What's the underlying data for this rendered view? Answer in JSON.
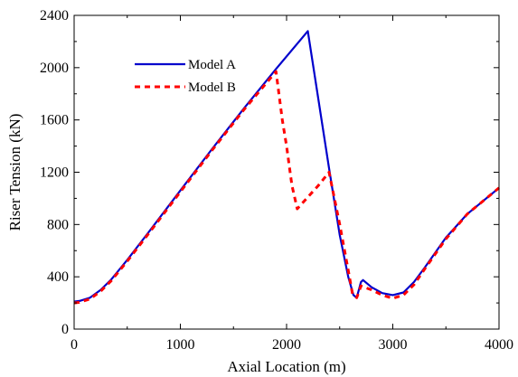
{
  "chart_data": {
    "type": "line",
    "title": "",
    "xlabel": "Axial Location (m)",
    "ylabel": "Riser Tension (kN)",
    "xlim": [
      0,
      4000
    ],
    "ylim": [
      0,
      2400
    ],
    "x_ticks": [
      0,
      1000,
      2000,
      3000,
      4000
    ],
    "y_ticks": [
      0,
      400,
      800,
      1200,
      1600,
      2000,
      2400
    ],
    "x_tick_labels": [
      "0",
      "1000",
      "2000",
      "3000",
      "4000"
    ],
    "y_tick_labels": [
      "0",
      "400",
      "800",
      "1200",
      "1600",
      "2000",
      "2400"
    ],
    "grid": false,
    "legend_position": "top-left",
    "series": [
      {
        "name": "Model A",
        "color": "#0000cc",
        "style": "solid",
        "points": [
          [
            0,
            210
          ],
          [
            50,
            215
          ],
          [
            150,
            240
          ],
          [
            250,
            300
          ],
          [
            350,
            380
          ],
          [
            500,
            530
          ],
          [
            700,
            740
          ],
          [
            1000,
            1060
          ],
          [
            1300,
            1380
          ],
          [
            1600,
            1690
          ],
          [
            1900,
            1990
          ],
          [
            2200,
            2280
          ],
          [
            2400,
            1230
          ],
          [
            2500,
            720
          ],
          [
            2580,
            400
          ],
          [
            2630,
            260
          ],
          [
            2660,
            240
          ],
          [
            2700,
            360
          ],
          [
            2720,
            375
          ],
          [
            2800,
            320
          ],
          [
            2900,
            275
          ],
          [
            3000,
            260
          ],
          [
            3100,
            280
          ],
          [
            3200,
            360
          ],
          [
            3300,
            470
          ],
          [
            3500,
            700
          ],
          [
            3700,
            880
          ],
          [
            4000,
            1080
          ]
        ]
      },
      {
        "name": "Model B",
        "color": "#ff0000",
        "style": "dashed",
        "points": [
          [
            0,
            200
          ],
          [
            50,
            205
          ],
          [
            150,
            230
          ],
          [
            250,
            290
          ],
          [
            350,
            370
          ],
          [
            500,
            520
          ],
          [
            700,
            730
          ],
          [
            1000,
            1050
          ],
          [
            1300,
            1370
          ],
          [
            1600,
            1680
          ],
          [
            1900,
            1970
          ],
          [
            1920,
            1850
          ],
          [
            1960,
            1600
          ],
          [
            2000,
            1400
          ],
          [
            2050,
            1100
          ],
          [
            2100,
            920
          ],
          [
            2300,
            1100
          ],
          [
            2400,
            1200
          ],
          [
            2500,
            800
          ],
          [
            2580,
            450
          ],
          [
            2620,
            270
          ],
          [
            2660,
            240
          ],
          [
            2700,
            330
          ],
          [
            2800,
            300
          ],
          [
            2900,
            260
          ],
          [
            3000,
            235
          ],
          [
            3100,
            260
          ],
          [
            3200,
            340
          ],
          [
            3300,
            460
          ],
          [
            3500,
            690
          ],
          [
            3700,
            880
          ],
          [
            4000,
            1080
          ]
        ]
      }
    ]
  }
}
